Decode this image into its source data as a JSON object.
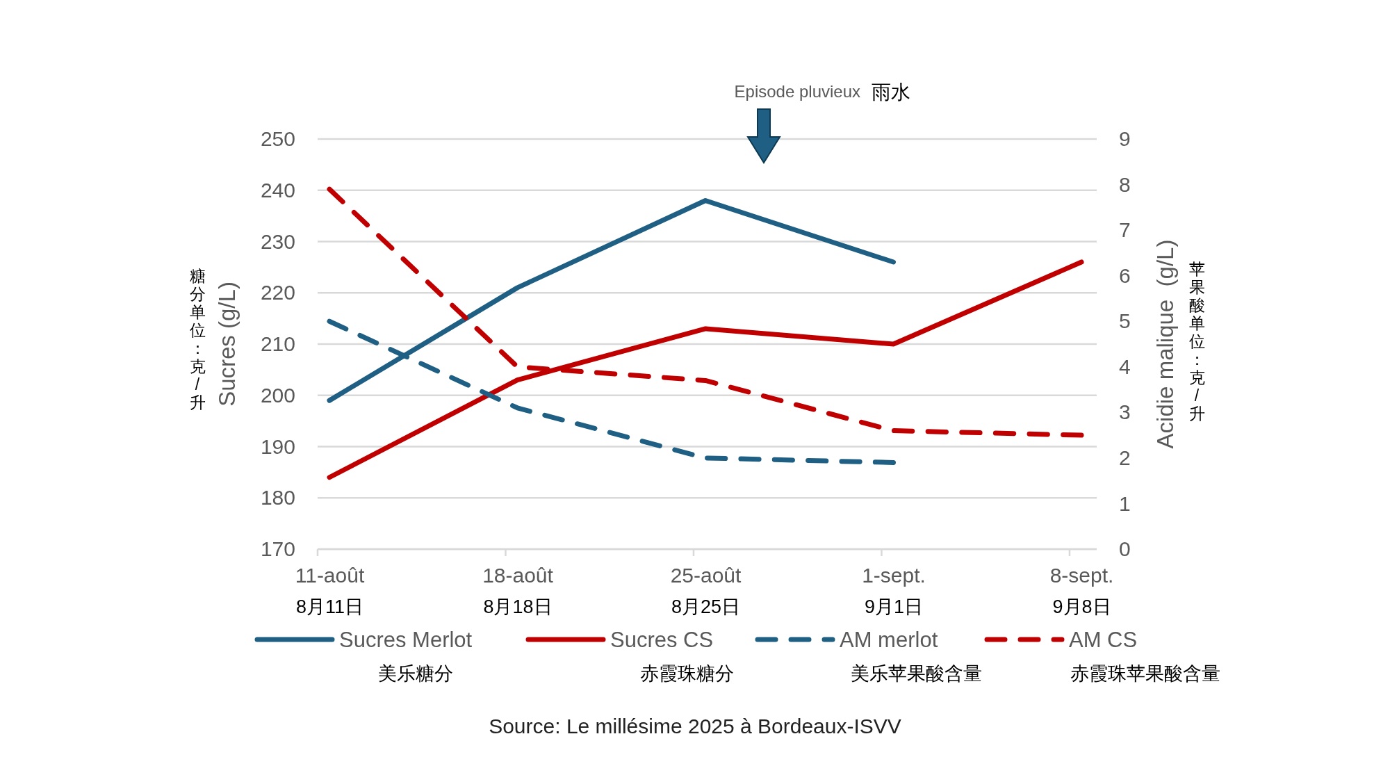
{
  "chart_data": {
    "type": "line",
    "categories": [
      "11-août\n8月11日",
      "18-août\n8月18日",
      "25-août\n8月25日",
      "1-sept.\n9月1日",
      "8-sept.\n9月8日"
    ],
    "ylabel": "Sucres (g/L)",
    "y2label": "Acidie malique  (g/L)",
    "ylim": [
      170,
      250
    ],
    "yticks": [
      170,
      180,
      190,
      200,
      210,
      220,
      230,
      240,
      250
    ],
    "y2lim": [
      0,
      9
    ],
    "y2ticks": [
      0,
      1,
      2,
      3,
      4,
      5,
      6,
      7,
      8,
      9
    ],
    "grid": "y",
    "legend": "bottom",
    "marker": "none",
    "series": [
      {
        "name": "Sucres Merlot\n美乐糖分",
        "color": "#1f5f84",
        "line_style": "solid",
        "values": [
          199,
          221,
          238,
          226,
          null
        ]
      },
      {
        "name": "Sucres CS\n赤霞珠糖分",
        "color": "#c00000",
        "line_style": "solid",
        "values": [
          184,
          203,
          213,
          210,
          226
        ]
      },
      {
        "name": "AM merlot\n美乐苹果酸含量",
        "color": "#1f5f84",
        "line_style": "dashed",
        "axis": "y2",
        "values": [
          5.0,
          3.1,
          2.0,
          1.9,
          null
        ]
      },
      {
        "name": "AM CS\n赤霞珠苹果酸含量",
        "color": "#c00000",
        "line_style": "dashed",
        "axis": "y2",
        "values": [
          7.9,
          4.0,
          3.7,
          2.6,
          2.5
        ]
      }
    ],
    "annotations": [
      "Episode pluvieux",
      "雨水",
      "糖分单位：克/升",
      "苹果酸单位：克/升",
      "Source: Le millésime 2025 à Bordeaux-ISVV"
    ]
  }
}
